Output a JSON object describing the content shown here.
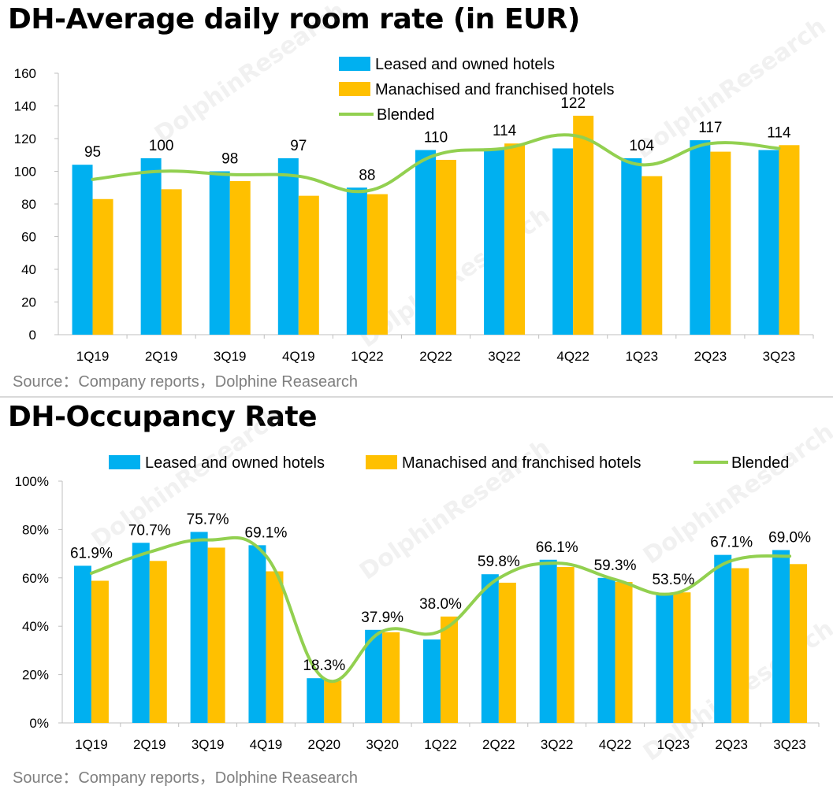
{
  "watermark": "DolphinResearch",
  "source": "Source：Company reports，Dolphine Reasearch",
  "colors": {
    "leased": "#00b0f0",
    "franchised": "#ffc000",
    "blended": "#92d050"
  },
  "chart_data": [
    {
      "type": "bar",
      "title": "DH-Average daily room rate (in EUR)",
      "categories": [
        "1Q19",
        "2Q19",
        "3Q19",
        "4Q19",
        "1Q22",
        "2Q22",
        "3Q22",
        "4Q22",
        "1Q23",
        "2Q23",
        "3Q23"
      ],
      "ylim": [
        0,
        160
      ],
      "yticks": [
        0,
        20,
        40,
        60,
        80,
        100,
        120,
        140,
        160
      ],
      "ytick_labels": [
        "0",
        "20",
        "40",
        "60",
        "80",
        "100",
        "120",
        "140",
        "160"
      ],
      "legend_position": "top-center",
      "grid": false,
      "series": [
        {
          "name": "Leased and owned hotels",
          "type": "bar",
          "values": [
            104,
            108,
            100,
            108,
            90,
            113,
            114,
            114,
            108,
            119,
            113
          ]
        },
        {
          "name": "Manachised and franchised hotels",
          "type": "bar",
          "values": [
            83,
            89,
            94,
            85,
            86,
            107,
            117,
            134,
            97,
            112,
            116
          ]
        },
        {
          "name": "Blended",
          "type": "line",
          "values": [
            95,
            100,
            98,
            97,
            88,
            110,
            114,
            122,
            104,
            117,
            114
          ],
          "labels": [
            "95",
            "100",
            "98",
            "97",
            "88",
            "110",
            "114",
            "122",
            "104",
            "117",
            "114"
          ]
        }
      ]
    },
    {
      "type": "bar",
      "title": "DH-Occupancy Rate",
      "categories": [
        "1Q19",
        "2Q19",
        "3Q19",
        "4Q19",
        "2Q20",
        "3Q20",
        "1Q22",
        "2Q22",
        "3Q22",
        "4Q22",
        "1Q23",
        "2Q23",
        "3Q23"
      ],
      "ylim": [
        0,
        100
      ],
      "yticks": [
        0,
        20,
        40,
        60,
        80,
        100
      ],
      "ytick_labels": [
        "0%",
        "20%",
        "40%",
        "60%",
        "80%",
        "100%"
      ],
      "legend_position": "top-center",
      "grid": false,
      "series": [
        {
          "name": "Leased and owned hotels",
          "type": "bar",
          "values": [
            65,
            74.5,
            79,
            73.5,
            18.5,
            38.5,
            34.5,
            61.5,
            67.5,
            60,
            53.5,
            69.5,
            71.5
          ]
        },
        {
          "name": "Manachised and franchised hotels",
          "type": "bar",
          "values": [
            58.8,
            67,
            72.5,
            62.7,
            17.5,
            37.5,
            44,
            58,
            64.5,
            58.3,
            54,
            64,
            65.7
          ]
        },
        {
          "name": "Blended",
          "type": "line",
          "values": [
            61.9,
            70.7,
            75.7,
            69.1,
            18.3,
            37.9,
            38.0,
            59.8,
            66.1,
            59.3,
            53.5,
            67.1,
            69.0
          ],
          "labels": [
            "61.9%",
            "70.7%",
            "75.7%",
            "69.1%",
            "18.3%",
            "37.9%",
            "38.0%",
            "59.8%",
            "66.1%",
            "59.3%",
            "53.5%",
            "67.1%",
            "69.0%"
          ]
        }
      ]
    }
  ]
}
